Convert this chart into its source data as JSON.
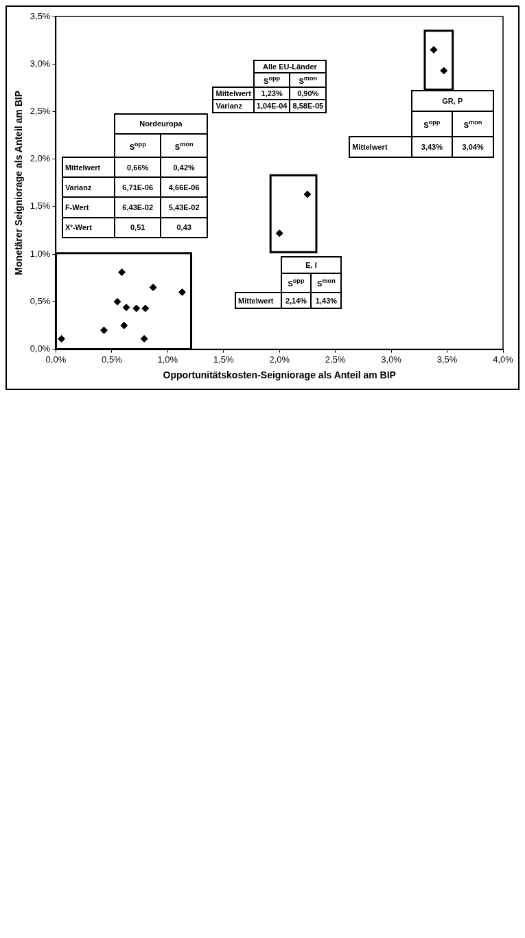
{
  "chart_data": {
    "type": "scatter",
    "xlabel": "Opportunitätskosten-Seigniorage als Anteil am BIP",
    "ylabel": "Monetärer Seigniorage als Anteil am BIP",
    "xlim": [
      0,
      4
    ],
    "ylim": [
      0,
      3.5
    ],
    "xticks": [
      {
        "value": 0,
        "label": "0,0%"
      },
      {
        "value": 0.5,
        "label": "0,5%"
      },
      {
        "value": 1,
        "label": "1,0%"
      },
      {
        "value": 1.5,
        "label": "1,5%"
      },
      {
        "value": 2,
        "label": "2,0%"
      },
      {
        "value": 2.5,
        "label": "2,5%"
      },
      {
        "value": 3,
        "label": "3,0%"
      },
      {
        "value": 3.5,
        "label": "3,5%"
      },
      {
        "value": 4,
        "label": "4,0%"
      }
    ],
    "yticks": [
      {
        "value": 0,
        "label": "0,0%"
      },
      {
        "value": 0.5,
        "label": "0,5%"
      },
      {
        "value": 1,
        "label": "1,0%"
      },
      {
        "value": 1.5,
        "label": "1,5%"
      },
      {
        "value": 2,
        "label": "2,0%"
      },
      {
        "value": 2.5,
        "label": "2,5%"
      },
      {
        "value": 3,
        "label": "3,0%"
      },
      {
        "value": 3.5,
        "label": "3,5%"
      }
    ],
    "marker": "diamond",
    "series": [
      {
        "color": "#000000",
        "x": [
          1.13,
          0.87,
          0.8,
          0.79,
          0.72,
          0.63,
          0.61,
          0.59,
          0.55,
          0.43,
          0.05
        ],
        "values": [
          0.6,
          0.65,
          0.43,
          0.11,
          0.43,
          0.44,
          0.25,
          0.81,
          0.5,
          0.2,
          0.11
        ]
      },
      {
        "color": "#000000",
        "x": [
          2.25,
          2.0
        ],
        "values": [
          1.63,
          1.22
        ]
      },
      {
        "color": "#000000",
        "x": [
          3.38,
          3.47
        ],
        "values": [
          3.15,
          2.93
        ]
      }
    ],
    "annotations": [
      "Nordeuropa\n\tS$^{opp}$\tS$^{mon}$\nMittelwert\t0,66%\t0,42%\nVarianz\t6,71E-06\t4,66E-06\nF-Wert\t6,43E-02\t5,43E-02\nX²-Wert\t0,51\t0,43",
      "Alle EU-Länder\n\tS$^{opp}$\tS$^{mon}$\nMittelwert\t1,23%\t0,90%\nVarianz\t1,04E-04\t8,58E-05",
      "E, I\n\tS$^{opp}$\tS$^{mon}$\nMittelwert\t2,14%\t1,43%",
      "GR, P\n\tS$^{opp}$\tS$^{mon}$\nMittelwert\t3,43%\t3,04%"
    ]
  }
}
